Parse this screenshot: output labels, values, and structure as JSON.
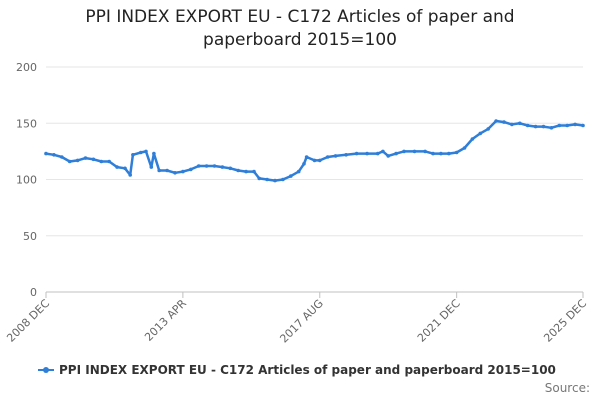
{
  "title_lines": [
    "PPI INDEX EXPORT EU - C172 Articles of paper and",
    "paperboard 2015=100"
  ],
  "legend_label": "PPI INDEX EXPORT EU - C172 Articles of paper and paperboard 2015=100",
  "credits": "Source:",
  "colors": {
    "series": "#2f7ed8",
    "grid": "#e6e6e6",
    "axis": "#c0c0c0"
  },
  "chart_data": {
    "type": "line",
    "title": "PPI INDEX EXPORT EU - C172 Articles of paper and paperboard 2015=100",
    "xlabel": "",
    "ylabel": "",
    "ylim": [
      0,
      200
    ],
    "yticks": [
      0,
      50,
      100,
      150,
      200
    ],
    "xlim": [
      "2008 DEC",
      "2025 DEC"
    ],
    "x_tick_labels": [
      "2008 DEC",
      "2013 APR",
      "2017 AUG",
      "2021 DEC",
      "2025 DEC"
    ],
    "grid": true,
    "legend": "bottom",
    "series": [
      {
        "name": "PPI INDEX EXPORT EU - C172 Articles of paper and paperboard 2015=100",
        "points": [
          [
            "2008 DEC",
            123
          ],
          [
            "2009 MAR",
            122
          ],
          [
            "2009 JUN",
            120
          ],
          [
            "2009 SEP",
            116
          ],
          [
            "2009 DEC",
            117
          ],
          [
            "2010 MAR",
            119
          ],
          [
            "2010 JUN",
            118
          ],
          [
            "2010 SEP",
            116
          ],
          [
            "2010 DEC",
            116
          ],
          [
            "2011 MAR",
            111
          ],
          [
            "2011 JUN",
            110
          ],
          [
            "2011 AUG",
            104
          ],
          [
            "2011 SEP",
            122
          ],
          [
            "2011 DEC",
            124
          ],
          [
            "2012 FEB",
            125
          ],
          [
            "2012 APR",
            111
          ],
          [
            "2012 MAY",
            123
          ],
          [
            "2012 JUL",
            108
          ],
          [
            "2012 OCT",
            108
          ],
          [
            "2013 JAN",
            106
          ],
          [
            "2013 APR",
            107
          ],
          [
            "2013 JUL",
            109
          ],
          [
            "2013 OCT",
            112
          ],
          [
            "2014 JAN",
            112
          ],
          [
            "2014 APR",
            112
          ],
          [
            "2014 JUL",
            111
          ],
          [
            "2014 OCT",
            110
          ],
          [
            "2015 JAN",
            108
          ],
          [
            "2015 APR",
            107
          ],
          [
            "2015 JUL",
            107
          ],
          [
            "2015 SEP",
            101
          ],
          [
            "2015 DEC",
            100
          ],
          [
            "2016 MAR",
            99
          ],
          [
            "2016 JUN",
            100
          ],
          [
            "2016 SEP",
            103
          ],
          [
            "2016 DEC",
            107
          ],
          [
            "2017 FEB",
            114
          ],
          [
            "2017 MAR",
            120
          ],
          [
            "2017 JUN",
            117
          ],
          [
            "2017 AUG",
            117
          ],
          [
            "2017 NOV",
            120
          ],
          [
            "2018 FEB",
            121
          ],
          [
            "2018 JUN",
            122
          ],
          [
            "2018 OCT",
            123
          ],
          [
            "2019 FEB",
            123
          ],
          [
            "2019 JUN",
            123
          ],
          [
            "2019 AUG",
            125
          ],
          [
            "2019 OCT",
            121
          ],
          [
            "2020 JAN",
            123
          ],
          [
            "2020 APR",
            125
          ],
          [
            "2020 AUG",
            125
          ],
          [
            "2020 DEC",
            125
          ],
          [
            "2021 MAR",
            123
          ],
          [
            "2021 JUN",
            123
          ],
          [
            "2021 SEP",
            123
          ],
          [
            "2021 DEC",
            124
          ],
          [
            "2022 MAR",
            128
          ],
          [
            "2022 JUN",
            136
          ],
          [
            "2022 SEP",
            141
          ],
          [
            "2022 DEC",
            145
          ],
          [
            "2023 MAR",
            152
          ],
          [
            "2023 JUN",
            151
          ],
          [
            "2023 SEP",
            149
          ],
          [
            "2023 DEC",
            150
          ],
          [
            "2024 MAR",
            148
          ],
          [
            "2024 JUN",
            147
          ],
          [
            "2024 SEP",
            147
          ],
          [
            "2024 DEC",
            146
          ],
          [
            "2025 MAR",
            148
          ],
          [
            "2025 JUN",
            148
          ],
          [
            "2025 SEP",
            149
          ],
          [
            "2025 DEC",
            148
          ]
        ]
      }
    ]
  }
}
